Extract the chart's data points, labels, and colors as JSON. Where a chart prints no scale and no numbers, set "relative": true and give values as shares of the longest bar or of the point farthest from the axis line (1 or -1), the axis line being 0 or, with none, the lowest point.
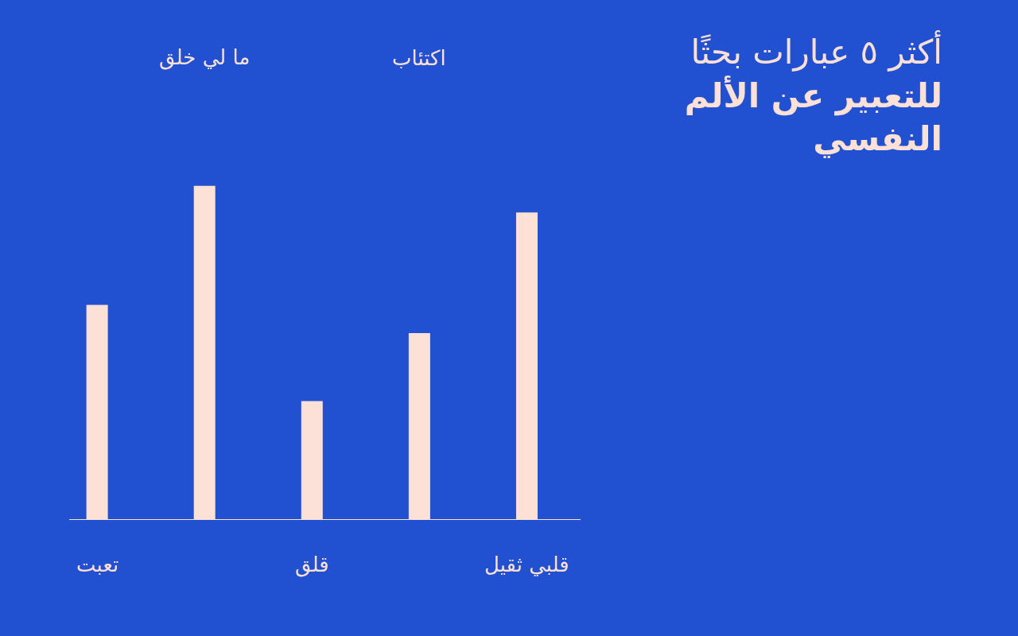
{
  "chart_data": {
    "type": "bar",
    "title": "أكثر ٥ عبارات بحثًا للتعبير عن الألم النفسي",
    "categories": [
      "تعبت",
      "ما لي خلق",
      "قلق",
      "اكتئاب",
      "قلبي ثقيل"
    ],
    "values": [
      0.643,
      1,
      0.354,
      0.558,
      0.92
    ],
    "color": "#fde0d6",
    "relative": true,
    "grid": false,
    "legend": false
  }
}
